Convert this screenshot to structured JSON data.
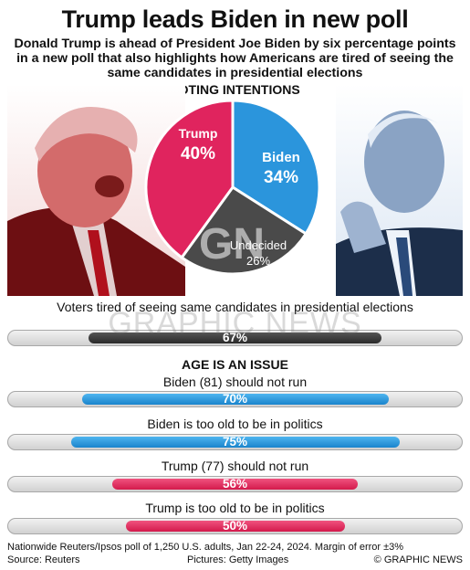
{
  "title": "Trump leads Biden in new poll",
  "subtitle": "Donald Trump is ahead of President Joe Biden by six percentage points in a new poll that also highlights how Americans are tired of seeing the same candidates in presidential elections",
  "colors": {
    "trump": "#e0245e",
    "biden": "#2b95dc",
    "undecided": "#4a4a4a",
    "track": "#d9d9d9"
  },
  "chart_data": [
    {
      "type": "pie",
      "title": "VOTING INTENTIONS",
      "slices": [
        {
          "label": "Biden",
          "value": 34,
          "value_label": "34%",
          "color": "#2b95dc"
        },
        {
          "label": "Undecided",
          "value": 26,
          "value_label": "26%",
          "color": "#4a4a4a"
        },
        {
          "label": "Trump",
          "value": 40,
          "value_label": "40%",
          "color": "#e0245e"
        }
      ]
    },
    {
      "type": "bar",
      "title": "",
      "orientation": "horizontal",
      "categories": [
        "Voters tired of seeing same candidates in presidential elections"
      ],
      "values": [
        67
      ],
      "value_labels": [
        "67%"
      ],
      "xlim": [
        0,
        100
      ]
    },
    {
      "type": "bar",
      "title": "AGE IS AN ISSUE",
      "orientation": "horizontal",
      "categories": [
        "Biden (81) should not run",
        "Biden is too old to be in politics",
        "Trump (77) should not run",
        "Trump is too old to be in politics"
      ],
      "values": [
        70,
        75,
        56,
        50
      ],
      "value_labels": [
        "70%",
        "75%",
        "56%",
        "50%"
      ],
      "xlim": [
        0,
        100
      ]
    }
  ],
  "watermark": {
    "text": "GRAPHIC NEWS",
    "logo": "GN"
  },
  "footer": {
    "note": "Nationwide Reuters/Ipsos poll of 1,250 U.S. adults, Jan 22-24, 2024. Margin of error ±3%",
    "source": "Source: Reuters",
    "pictures": "Pictures: Getty Images",
    "credit": "© GRAPHIC NEWS"
  }
}
